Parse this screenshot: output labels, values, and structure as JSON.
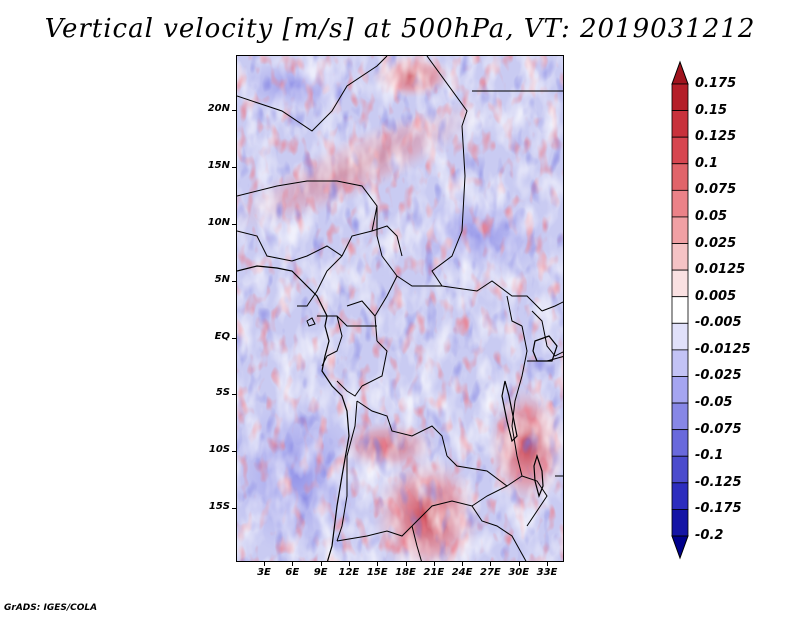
{
  "title": "Vertical velocity [m/s] at 500hPa, VT: 2019031212",
  "footer": "GrADS: IGES/COLA",
  "map": {
    "region": "Central Africa",
    "variable": "Vertical velocity",
    "units": "m/s",
    "level": "500hPa",
    "valid_time": "2019031212"
  },
  "lat_labels": [
    "20N",
    "15N",
    "10N",
    "5N",
    "EQ",
    "5S",
    "10S",
    "15S"
  ],
  "lon_labels": [
    "3E",
    "6E",
    "9E",
    "12E",
    "15E",
    "18E",
    "21E",
    "24E",
    "27E",
    "30E",
    "33E"
  ],
  "colorbar": {
    "labels": [
      "0.175",
      "0.15",
      "0.125",
      "0.1",
      "0.075",
      "0.05",
      "0.025",
      "0.0125",
      "0.005",
      "-0.005",
      "-0.0125",
      "-0.025",
      "-0.05",
      "-0.075",
      "-0.1",
      "-0.125",
      "-0.175",
      "-0.2"
    ],
    "colors": [
      "#a0141e",
      "#b41e28",
      "#c8323c",
      "#d74650",
      "#e1646a",
      "#eb8288",
      "#f0a0a4",
      "#f5c3c5",
      "#fae1e2",
      "#ffffff",
      "#e1e1fa",
      "#c3c3f5",
      "#a5a5f0",
      "#8787e6",
      "#6969dc",
      "#4b4bcd",
      "#2d2dbe",
      "#1414a5",
      "#00008c"
    ]
  }
}
